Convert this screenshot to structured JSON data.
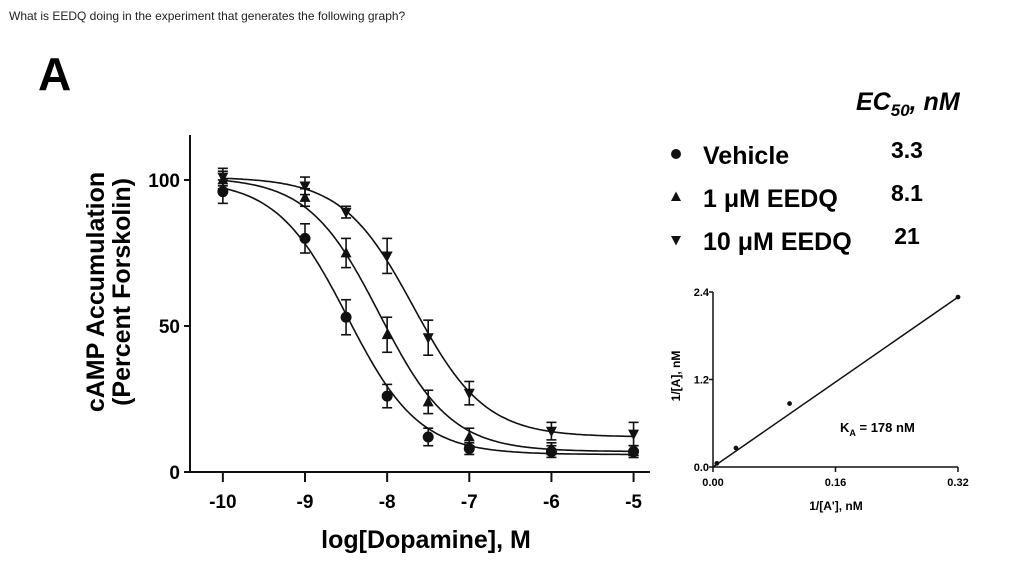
{
  "question": "What is EEDQ doing in the experiment that generates the following graph?",
  "panel_label": "A",
  "chart_data": [
    {
      "type": "line",
      "ylabel_line1": "cAMP Accumulation",
      "ylabel_line2": "(Percent Forskolin)",
      "xlabel": "log[Dopamine], M",
      "xlim": [
        -10.4,
        -4.8
      ],
      "ylim": [
        0,
        110
      ],
      "x_ticks": [
        -10,
        -9,
        -8,
        -7,
        -6,
        -5
      ],
      "x_tick_labels": [
        "-10",
        "-9",
        "-8",
        "-7",
        "-6",
        "-5"
      ],
      "y_ticks": [
        0,
        50,
        100
      ],
      "y_tick_labels": [
        "0",
        "50",
        "100"
      ],
      "legend_placement": "right",
      "ec50_header_main": "EC",
      "ec50_header_sub": "50",
      "ec50_header_unit": ", nM",
      "series": [
        {
          "name": "Vehicle",
          "marker": "circle",
          "ec50": "3.3",
          "ec50_value": 3.3,
          "top": 100,
          "bottom": 6,
          "x": [
            -10,
            -9,
            -8.5,
            -8,
            -7.5,
            -7,
            -6,
            -5
          ],
          "y": [
            96,
            80,
            53,
            26,
            12,
            8,
            7,
            7
          ],
          "err": [
            4,
            5,
            6,
            4,
            3,
            2,
            2,
            2
          ]
        },
        {
          "name": "1 μM EEDQ",
          "marker": "triangle-up",
          "ec50": "8.1",
          "ec50_value": 8.1,
          "top": 101,
          "bottom": 7,
          "x": [
            -10,
            -9,
            -8.5,
            -8,
            -7.5,
            -7,
            -6,
            -5
          ],
          "y": [
            100,
            94,
            75,
            47,
            24,
            12,
            8,
            7
          ],
          "err": [
            3,
            3,
            5,
            6,
            4,
            3,
            2,
            2
          ]
        },
        {
          "name": "10 μM EEDQ",
          "marker": "triangle-down",
          "ec50": "21",
          "ec50_value": 21,
          "top": 101,
          "bottom": 12,
          "x": [
            -10,
            -9,
            -8.5,
            -8,
            -7.5,
            -7,
            -6,
            -5
          ],
          "y": [
            101,
            98,
            89,
            74,
            46,
            27,
            14,
            13
          ],
          "err": [
            3,
            3,
            2,
            6,
            6,
            4,
            3,
            4
          ]
        }
      ]
    },
    {
      "type": "line",
      "ylabel": "1/[A], nM",
      "xlabel": "1/[A'], nM",
      "xlim": [
        0,
        0.32
      ],
      "ylim": [
        0,
        2.4
      ],
      "x_ticks": [
        0,
        0.16,
        0.32
      ],
      "x_tick_labels": [
        "0.00",
        "0.16",
        "0.32"
      ],
      "y_ticks": [
        0,
        1.2,
        2.4
      ],
      "y_tick_labels": [
        "0.0",
        "1.2",
        "2.4"
      ],
      "annotation": "K",
      "annotation_sub": "A",
      "annotation_rest": " = 178 nM",
      "points": {
        "x": [
          0.005,
          0.03,
          0.1,
          0.32
        ],
        "y": [
          0.05,
          0.26,
          0.87,
          2.33
        ]
      },
      "fit_line": {
        "x": [
          0,
          0.32
        ],
        "y": [
          0.0,
          2.33
        ]
      }
    }
  ]
}
